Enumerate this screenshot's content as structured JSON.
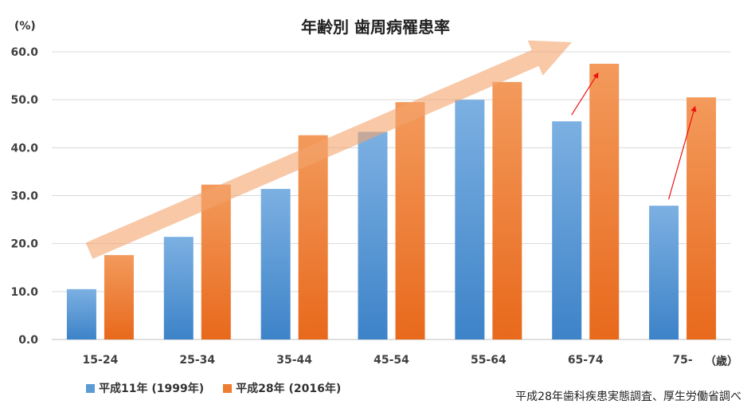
{
  "chart_data": {
    "type": "bar",
    "title": "年齢別 歯周病罹患率",
    "y_unit": "(%)",
    "x_unit": "（歳）",
    "categories": [
      "15-24",
      "25-34",
      "35-44",
      "45-54",
      "55-64",
      "65-74",
      "75-"
    ],
    "ylim": [
      0,
      60
    ],
    "yticks": [
      "0.0",
      "10.0",
      "20.0",
      "30.0",
      "40.0",
      "50.0",
      "60.0"
    ],
    "grid": true,
    "legend_position": "bottom-left",
    "series": [
      {
        "name": "平成11年 (1999年)",
        "color": "#5b9bd5",
        "values": [
          10.5,
          21.4,
          31.4,
          43.3,
          50.0,
          45.5,
          27.9
        ]
      },
      {
        "name": "平成28年 (2016年)",
        "color": "#ed7d31",
        "values": [
          17.6,
          32.3,
          42.6,
          49.5,
          53.7,
          57.5,
          50.5
        ]
      }
    ],
    "source": "平成28年歯科疾患実態調査、厚生労働省調べ"
  }
}
